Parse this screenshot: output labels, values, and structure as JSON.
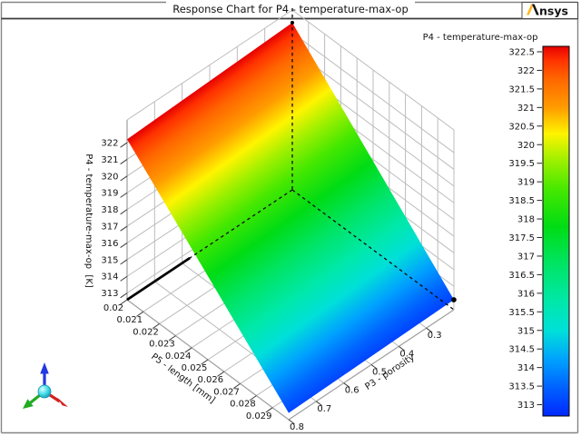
{
  "header": {
    "title": "Response Chart for P4 - temperature-max-op",
    "logo_text": "nsys",
    "logo_brand": "Ansys",
    "logo_accent_color": "#ffb71b"
  },
  "chart_data": {
    "type": "surface3d",
    "title": "Response Chart for P4 - temperature-max-op",
    "x_axis": {
      "label": "P5 - length [mm]",
      "tick_labels": [
        "0.02",
        "0.021",
        "0.022",
        "0.023",
        "0.024",
        "0.025",
        "0.026",
        "0.027",
        "0.028",
        "0.029"
      ],
      "range": [
        0.02,
        0.03
      ]
    },
    "y_axis": {
      "label": "P3 - porosity",
      "tick_labels": [
        "0.8",
        "0.7",
        "0.6",
        "0.5",
        "0.4",
        "0.3"
      ],
      "range": [
        0.8,
        0.2
      ]
    },
    "z_axis": {
      "label": "P4 - temperature-max-op  [K]",
      "tick_labels": [
        "313",
        "314",
        "315",
        "316",
        "317",
        "318",
        "319",
        "320",
        "321",
        "322"
      ],
      "range": [
        312.6,
        323.4
      ]
    },
    "colorbar": {
      "title": "P4 - temperature-max-op",
      "tick_labels": [
        "322.5",
        "322",
        "321.5",
        "321",
        "320.5",
        "320",
        "319.5",
        "319",
        "318.5",
        "318",
        "317.5",
        "317",
        "316.5",
        "316",
        "315.5",
        "315",
        "314.5",
        "314",
        "313.5",
        "313"
      ],
      "min": 312.7,
      "max": 322.65
    },
    "colormap": [
      [
        312.7,
        "#0028ff"
      ],
      [
        313.5,
        "#0064ff"
      ],
      [
        314.2,
        "#00a0ff"
      ],
      [
        315.0,
        "#00e0d8"
      ],
      [
        315.8,
        "#00e8a8"
      ],
      [
        316.8,
        "#00e464"
      ],
      [
        317.8,
        "#00dc14"
      ],
      [
        318.8,
        "#46e800"
      ],
      [
        319.6,
        "#a0f000"
      ],
      [
        320.3,
        "#fff400"
      ],
      [
        321.0,
        "#ff9c00"
      ],
      [
        321.8,
        "#ff6400"
      ],
      [
        322.3,
        "#ff3000"
      ],
      [
        322.65,
        "#e60000"
      ]
    ],
    "surface_points": [
      {
        "p5": 0.02,
        "p3": 0.2,
        "p4": 322.6
      },
      {
        "p5": 0.02,
        "p3": 0.8,
        "p4": 322.2
      },
      {
        "p5": 0.03,
        "p3": 0.8,
        "p4": 313.0
      },
      {
        "p5": 0.03,
        "p3": 0.2,
        "p4": 313.2
      }
    ]
  }
}
